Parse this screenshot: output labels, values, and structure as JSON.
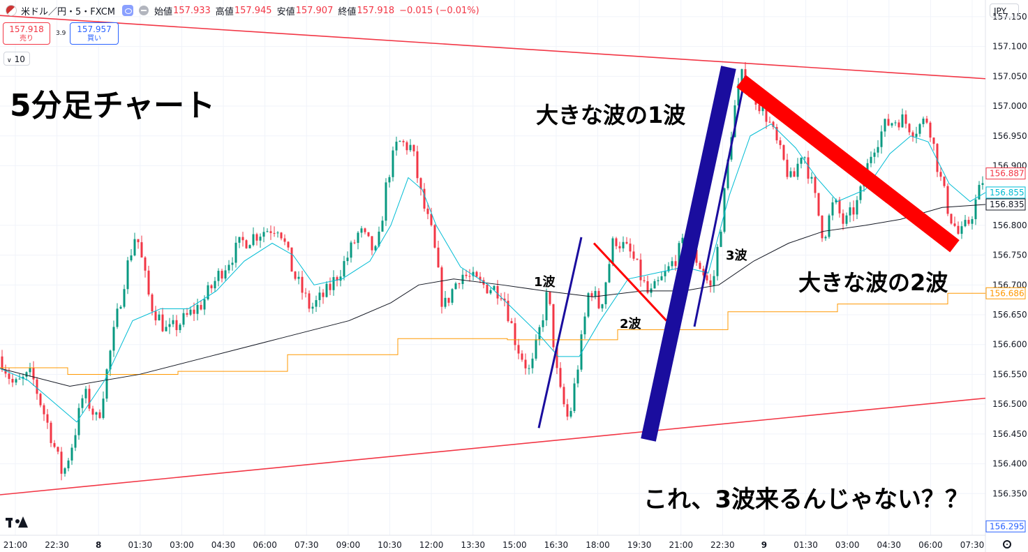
{
  "header": {
    "symbol": "米ドル／円・5・FXCM",
    "ohlc": [
      {
        "label": "始値",
        "value": "157.933"
      },
      {
        "label": "高値",
        "value": "157.945"
      },
      {
        "label": "安値",
        "value": "157.907"
      },
      {
        "label": "終値",
        "value": "157.918"
      },
      {
        "label": "",
        "value": "−0.015 (−0.01%)"
      }
    ]
  },
  "trade": {
    "sell_price": "157.918",
    "sell_label": "売り",
    "spread": "3.9",
    "buy_price": "157.957",
    "buy_label": "買い"
  },
  "interval_value": "10",
  "currency": "JPY",
  "colors": {
    "up": "#089981",
    "down": "#f23645",
    "ema_fast": "#22ab94",
    "ema_slow": "#131722",
    "orange": "#ff9800",
    "trend": "#f23645",
    "wave_blue": "#1a0d9e",
    "wave_red": "#ff0000"
  },
  "annotations": {
    "title": "5分足チャート",
    "big_wave1": "大きな波の1波",
    "big_wave2": "大きな波の2波",
    "w1": "1波",
    "w2": "2波",
    "w3": "3波",
    "question": "これ、3波来るんじゃない？？"
  },
  "chart_data": {
    "type": "candlestick",
    "y_range": [
      156.252,
      157.178
    ],
    "x_ticks": [
      "21:00",
      "22:30",
      "8",
      "01:30",
      "03:00",
      "04:30",
      "06:00",
      "07:30",
      "09:00",
      "10:30",
      "12:00",
      "13:30",
      "15:00",
      "16:30",
      "18:00",
      "19:30",
      "21:00",
      "22:30",
      "9",
      "01:30",
      "03:00",
      "04:30",
      "06:00",
      "07:30"
    ],
    "y_ticks": [
      "157.150",
      "157.100",
      "157.050",
      "157.000",
      "156.950",
      "156.900",
      "156.800",
      "156.750",
      "156.700",
      "156.650",
      "156.600",
      "156.550",
      "156.500",
      "156.450",
      "156.400",
      "156.350"
    ],
    "price_labels": [
      {
        "value": "156.887",
        "kind": "last"
      },
      {
        "value": "156.855",
        "kind": "ema_fast"
      },
      {
        "value": "156.835",
        "kind": "ema_slow"
      },
      {
        "value": "156.686",
        "kind": "orange"
      },
      {
        "value": "156.295",
        "kind": "blue"
      }
    ],
    "price_path": [
      [
        0,
        156.58
      ],
      [
        20,
        156.53
      ],
      [
        45,
        156.55
      ],
      [
        70,
        156.46
      ],
      [
        90,
        156.38
      ],
      [
        105,
        156.44
      ],
      [
        120,
        156.52
      ],
      [
        140,
        156.47
      ],
      [
        160,
        156.6
      ],
      [
        180,
        156.72
      ],
      [
        195,
        156.79
      ],
      [
        215,
        156.67
      ],
      [
        240,
        156.62
      ],
      [
        262,
        156.64
      ],
      [
        290,
        156.67
      ],
      [
        315,
        156.72
      ],
      [
        345,
        156.77
      ],
      [
        375,
        156.79
      ],
      [
        400,
        156.8
      ],
      [
        420,
        156.72
      ],
      [
        445,
        156.66
      ],
      [
        470,
        156.69
      ],
      [
        495,
        156.74
      ],
      [
        515,
        156.79
      ],
      [
        540,
        156.75
      ],
      [
        555,
        156.88
      ],
      [
        570,
        156.94
      ],
      [
        590,
        156.93
      ],
      [
        605,
        156.84
      ],
      [
        620,
        156.78
      ],
      [
        635,
        156.66
      ],
      [
        660,
        156.72
      ],
      [
        690,
        156.7
      ],
      [
        720,
        156.69
      ],
      [
        740,
        156.6
      ],
      [
        760,
        156.55
      ],
      [
        785,
        156.69
      ],
      [
        800,
        156.53
      ],
      [
        815,
        156.47
      ],
      [
        830,
        156.58
      ],
      [
        845,
        156.7
      ],
      [
        860,
        156.66
      ],
      [
        880,
        156.78
      ],
      [
        905,
        156.75
      ],
      [
        930,
        156.68
      ],
      [
        955,
        156.72
      ],
      [
        980,
        156.77
      ],
      [
        1000,
        156.74
      ],
      [
        1020,
        156.69
      ],
      [
        1035,
        156.82
      ],
      [
        1050,
        156.98
      ],
      [
        1062,
        157.05
      ],
      [
        1080,
        157.02
      ],
      [
        1100,
        156.98
      ],
      [
        1118,
        156.92
      ],
      [
        1135,
        156.87
      ],
      [
        1150,
        156.93
      ],
      [
        1165,
        156.86
      ],
      [
        1180,
        156.78
      ],
      [
        1195,
        156.84
      ],
      [
        1210,
        156.8
      ],
      [
        1230,
        156.84
      ],
      [
        1250,
        156.93
      ],
      [
        1270,
        156.97
      ],
      [
        1290,
        156.98
      ],
      [
        1310,
        156.96
      ],
      [
        1330,
        156.98
      ],
      [
        1345,
        156.89
      ],
      [
        1360,
        156.82
      ],
      [
        1375,
        156.78
      ],
      [
        1390,
        156.81
      ],
      [
        1412,
        156.89
      ]
    ],
    "ema_fast_path": [
      [
        0,
        156.56
      ],
      [
        40,
        156.54
      ],
      [
        80,
        156.5
      ],
      [
        110,
        156.47
      ],
      [
        150,
        156.54
      ],
      [
        190,
        156.64
      ],
      [
        230,
        156.66
      ],
      [
        270,
        156.66
      ],
      [
        310,
        156.69
      ],
      [
        350,
        156.74
      ],
      [
        390,
        156.77
      ],
      [
        420,
        156.75
      ],
      [
        450,
        156.7
      ],
      [
        490,
        156.71
      ],
      [
        530,
        156.74
      ],
      [
        560,
        156.8
      ],
      [
        585,
        156.88
      ],
      [
        605,
        156.86
      ],
      [
        625,
        156.8
      ],
      [
        660,
        156.73
      ],
      [
        700,
        156.7
      ],
      [
        735,
        156.66
      ],
      [
        770,
        156.62
      ],
      [
        800,
        156.58
      ],
      [
        830,
        156.58
      ],
      [
        860,
        156.64
      ],
      [
        900,
        156.71
      ],
      [
        940,
        156.72
      ],
      [
        980,
        156.73
      ],
      [
        1015,
        156.72
      ],
      [
        1045,
        156.85
      ],
      [
        1075,
        156.95
      ],
      [
        1105,
        156.97
      ],
      [
        1140,
        156.93
      ],
      [
        1170,
        156.88
      ],
      [
        1200,
        156.84
      ],
      [
        1240,
        156.86
      ],
      [
        1275,
        156.92
      ],
      [
        1305,
        156.95
      ],
      [
        1330,
        156.94
      ],
      [
        1360,
        156.87
      ],
      [
        1390,
        156.84
      ],
      [
        1412,
        156.855
      ]
    ],
    "ema_slow_path": [
      [
        0,
        156.56
      ],
      [
        100,
        156.53
      ],
      [
        200,
        156.55
      ],
      [
        300,
        156.58
      ],
      [
        400,
        156.61
      ],
      [
        500,
        156.64
      ],
      [
        560,
        156.67
      ],
      [
        600,
        156.7
      ],
      [
        650,
        156.71
      ],
      [
        720,
        156.7
      ],
      [
        780,
        156.69
      ],
      [
        850,
        156.68
      ],
      [
        920,
        156.69
      ],
      [
        980,
        156.69
      ],
      [
        1030,
        156.7
      ],
      [
        1080,
        156.74
      ],
      [
        1130,
        156.77
      ],
      [
        1180,
        156.79
      ],
      [
        1240,
        156.8
      ],
      [
        1290,
        156.81
      ],
      [
        1350,
        156.83
      ],
      [
        1412,
        156.835
      ]
    ],
    "orange_steps": [
      [
        0,
        156.561
      ],
      [
        97,
        156.561
      ],
      [
        97,
        156.55
      ],
      [
        255,
        156.55
      ],
      [
        255,
        156.555
      ],
      [
        412,
        156.555
      ],
      [
        412,
        156.583
      ],
      [
        570,
        156.583
      ],
      [
        570,
        156.61
      ],
      [
        727,
        156.61
      ],
      [
        727,
        156.608
      ],
      [
        885,
        156.608
      ],
      [
        885,
        156.625
      ],
      [
        1043,
        156.625
      ],
      [
        1043,
        156.655
      ],
      [
        1200,
        156.655
      ],
      [
        1200,
        156.668
      ],
      [
        1358,
        156.668
      ],
      [
        1358,
        156.686
      ],
      [
        1412,
        156.686
      ]
    ],
    "trend_upper": [
      [
        0,
        157.152
      ],
      [
        1412,
        157.046
      ]
    ],
    "trend_lower": [
      [
        0,
        156.348
      ],
      [
        1412,
        156.51
      ]
    ]
  }
}
